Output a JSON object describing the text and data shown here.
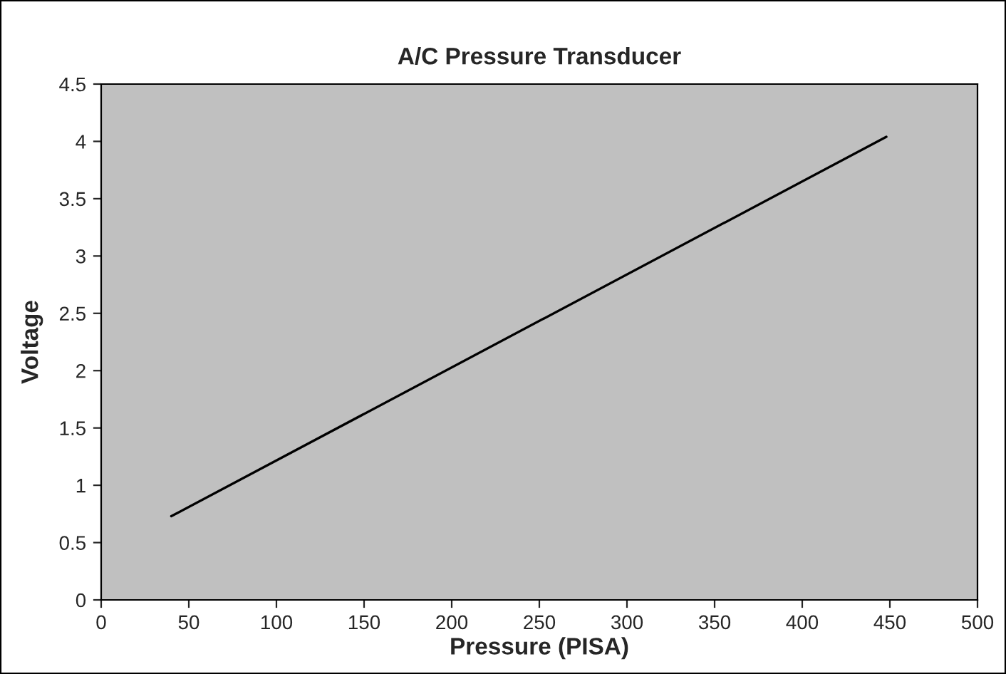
{
  "chart_data": {
    "type": "line",
    "title": "A/C Pressure Transducer",
    "xlabel": "Pressure (PISA)",
    "ylabel": "Voltage",
    "x": [
      40,
      448
    ],
    "series": [
      {
        "color": "#000000",
        "values": [
          0.73,
          4.04
        ]
      }
    ],
    "xlim": [
      0,
      500
    ],
    "xticks": [
      0,
      50,
      100,
      150,
      200,
      250,
      300,
      350,
      400,
      450,
      500
    ],
    "ylim": [
      0,
      4.5
    ],
    "yticks": [
      0,
      0.5,
      1,
      1.5,
      2,
      2.5,
      3,
      3.5,
      4,
      4.5
    ],
    "grid": false,
    "marker": "none",
    "line_style": "solid"
  }
}
